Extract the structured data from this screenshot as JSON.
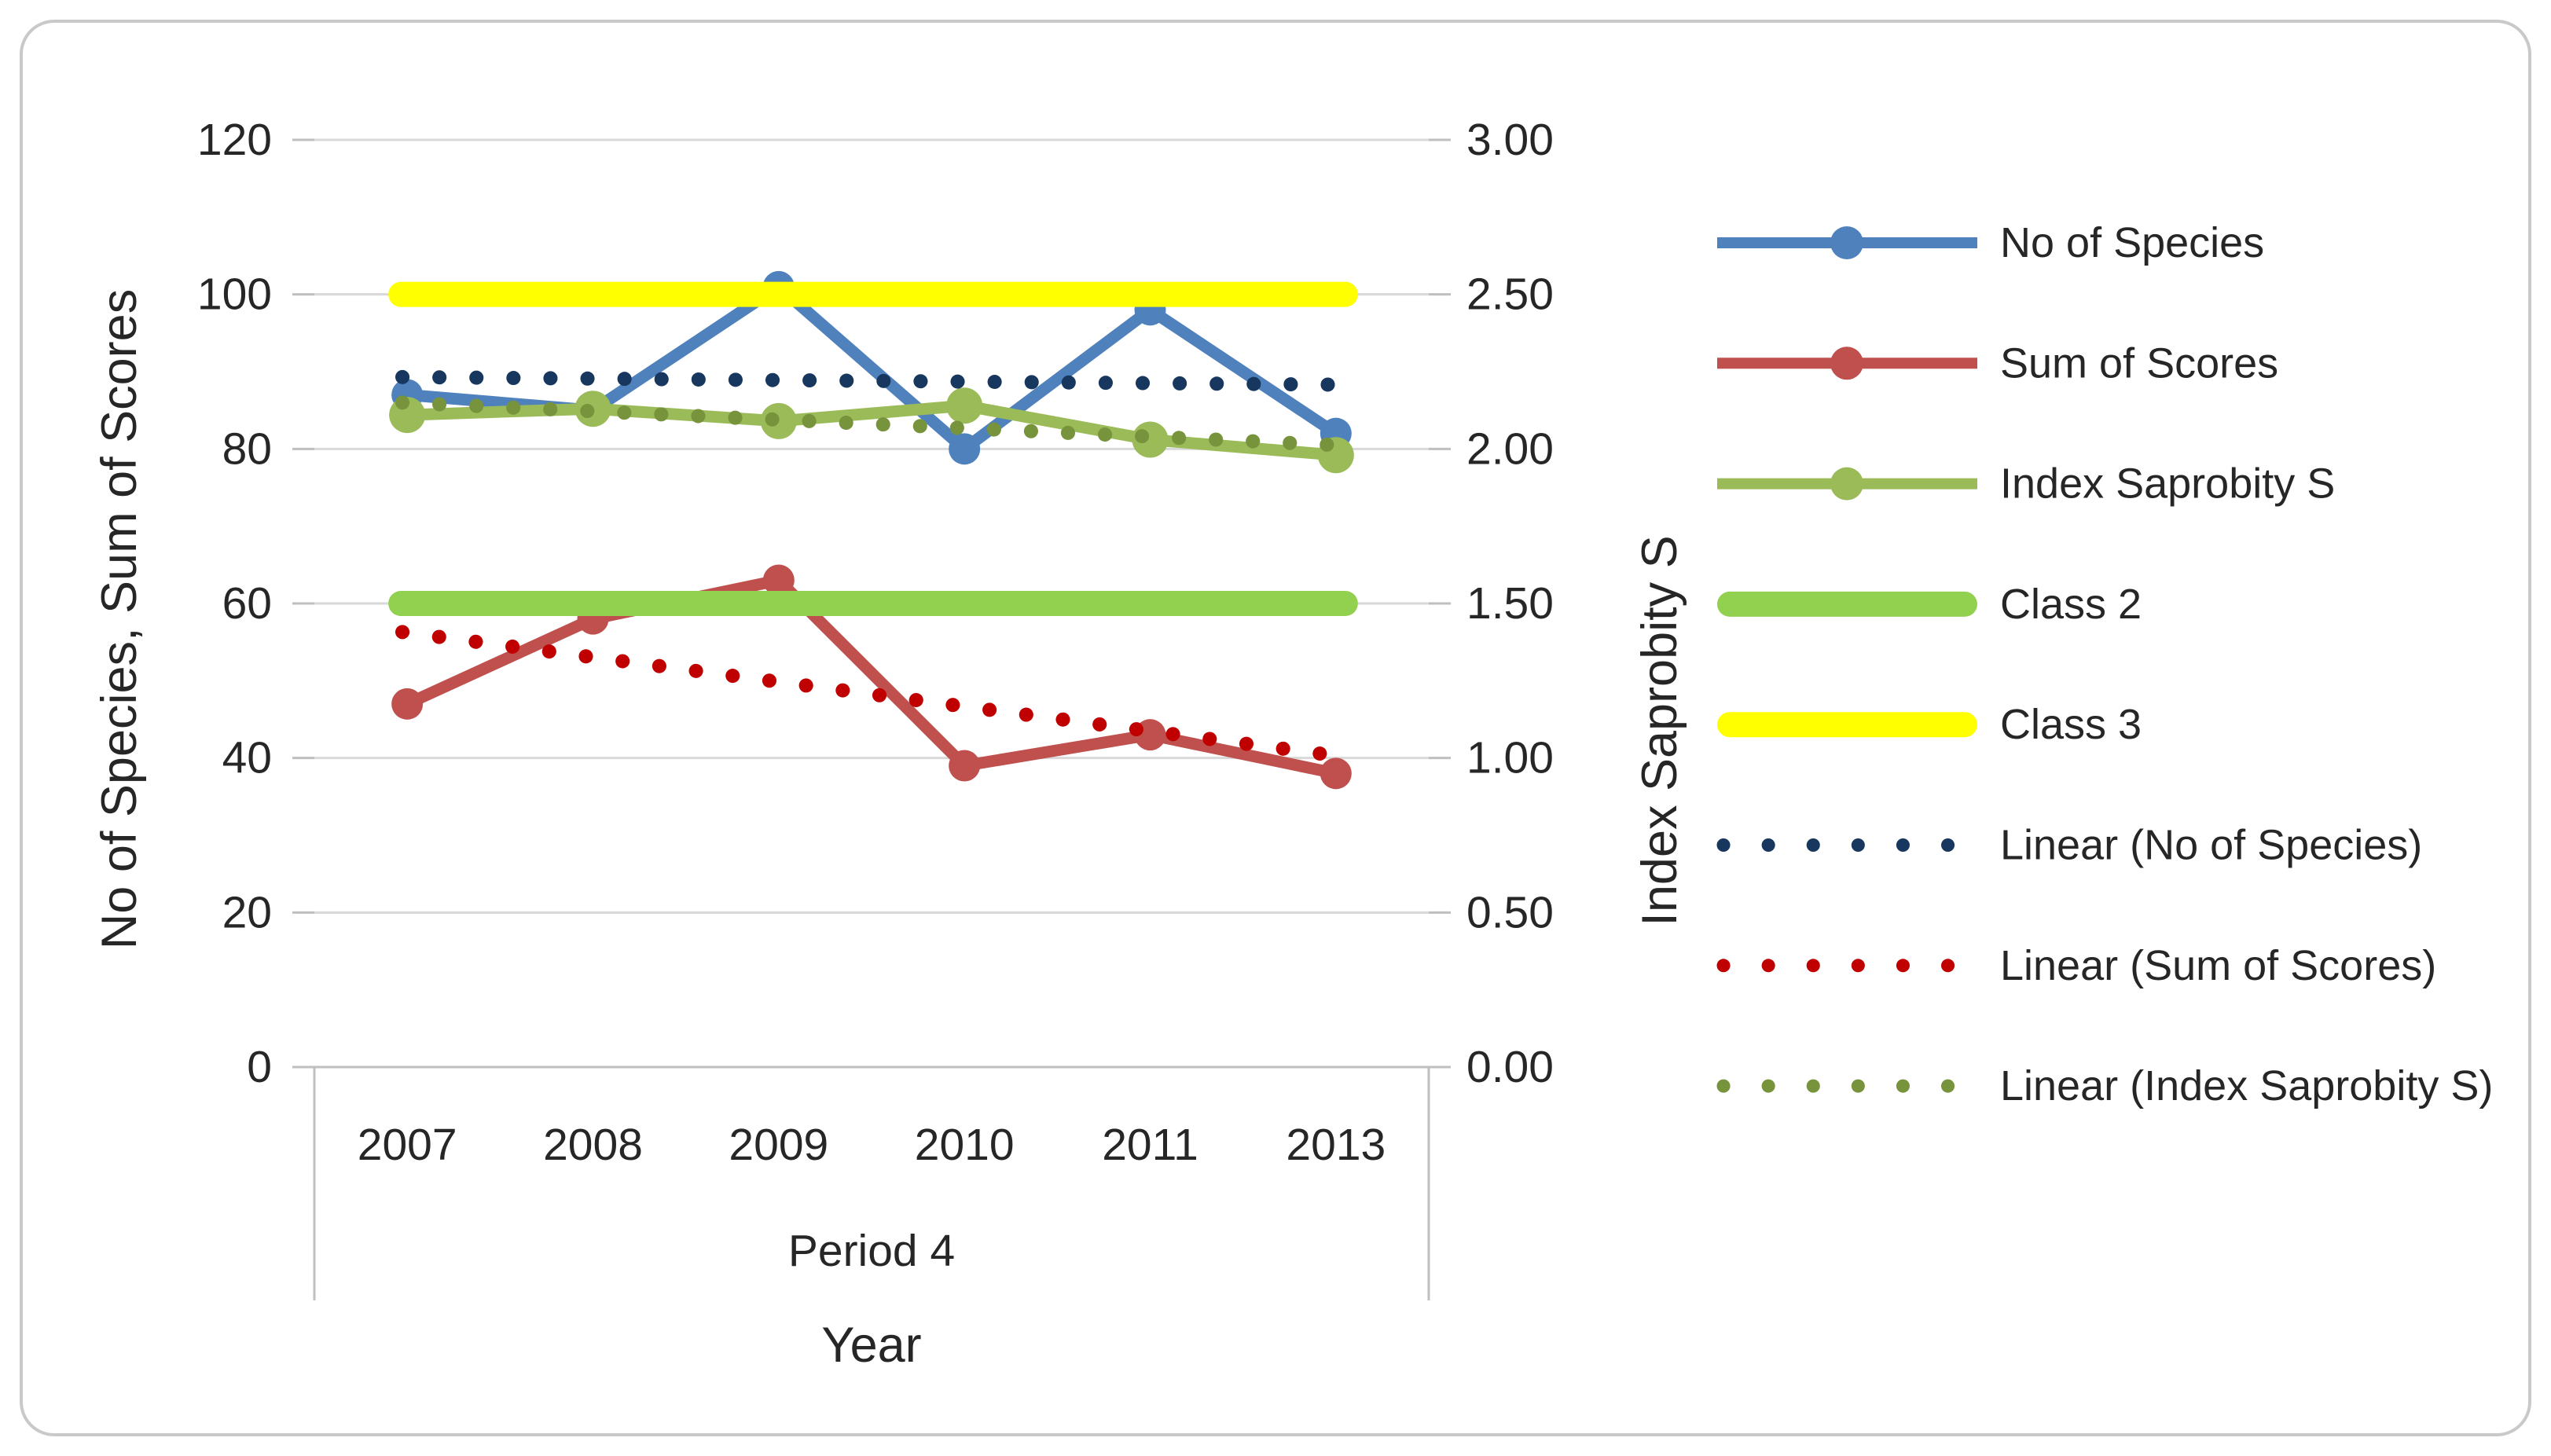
{
  "chart_data": {
    "type": "line",
    "categories": [
      "2007",
      "2008",
      "2009",
      "2010",
      "2011",
      "2013"
    ],
    "x_axis": {
      "title": "Year",
      "group_label": "Period 4"
    },
    "left_axis": {
      "title": "No of Species, Sum of Scores",
      "min": 0,
      "max": 120,
      "tick_labels": [
        "0",
        "20",
        "40",
        "60",
        "80",
        "100",
        "120"
      ]
    },
    "right_axis": {
      "title": "Index Saprobity S",
      "min": 0,
      "max": 3,
      "tick_labels": [
        "0.00",
        "0.50",
        "1.00",
        "1.50",
        "2.00",
        "2.50",
        "3.00"
      ]
    },
    "series": [
      {
        "name": "No of Species",
        "axis": "left",
        "color": "#4F81BD",
        "style": "line-marker",
        "values": [
          87,
          85,
          101,
          80,
          98,
          82
        ]
      },
      {
        "name": "Sum of Scores",
        "axis": "left",
        "color": "#C0504D",
        "style": "line-marker",
        "values": [
          47,
          58,
          63,
          39,
          43,
          38
        ]
      },
      {
        "name": "Index Saprobity S",
        "axis": "right",
        "color": "#9BBB59",
        "style": "line-marker",
        "values": [
          2.11,
          2.13,
          2.09,
          2.14,
          2.03,
          1.98
        ]
      },
      {
        "name": "Class 2",
        "axis": "right",
        "color": "#92D050",
        "style": "thick-line",
        "values": [
          1.5,
          1.5,
          1.5,
          1.5,
          1.5,
          1.5
        ]
      },
      {
        "name": "Class 3",
        "axis": "right",
        "color": "#FFFF00",
        "style": "thick-line",
        "values": [
          2.5,
          2.5,
          2.5,
          2.5,
          2.5,
          2.5
        ]
      }
    ],
    "trendlines": [
      {
        "name": "Linear (No of Species)",
        "axis": "left",
        "color": "#17375E",
        "start": 89.3,
        "end": 88.3
      },
      {
        "name": "Linear (Sum of Scores)",
        "axis": "left",
        "color": "#C00000",
        "start": 56.3,
        "end": 40.0
      },
      {
        "name": "Linear (Index Saprobity S)",
        "axis": "right",
        "color": "#77933C",
        "start": 2.15,
        "end": 2.01
      }
    ],
    "legend_entries": [
      "No of Species",
      "Sum of Scores",
      "Index Saprobity S",
      "Class 2",
      "Class 3",
      "Linear (No of Species)",
      "Linear (Sum of Scores)",
      "Linear (Index Saprobity S)"
    ],
    "legend_position": "right",
    "grid": true,
    "colors": {
      "gridline": "#D9D9D9",
      "axis_line": "#BFBFBF",
      "text": "#262626",
      "frame_border": "#C9C9C9",
      "background": "#FFFFFF"
    }
  }
}
